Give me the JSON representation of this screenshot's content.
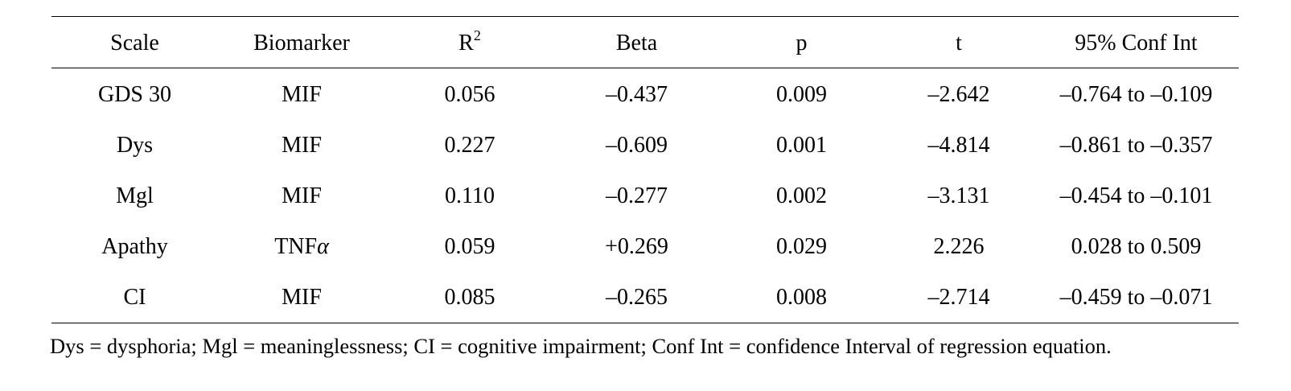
{
  "table": {
    "headers": {
      "scale": "Scale",
      "biomarker": "Biomarker",
      "r2_base": "R",
      "r2_sup": "2",
      "beta": "Beta",
      "p": "p",
      "t": "t",
      "ci": "95% Conf Int"
    },
    "rows": [
      {
        "scale": "GDS 30",
        "biomarker": "MIF",
        "biomarker_suffix": "",
        "r2": "0.056",
        "beta": "–0.437",
        "p": "0.009",
        "t": "–2.642",
        "ci": "–0.764 to –0.109"
      },
      {
        "scale": "Dys",
        "biomarker": "MIF",
        "biomarker_suffix": "",
        "r2": "0.227",
        "beta": "–0.609",
        "p": "0.001",
        "t": "–4.814",
        "ci": "–0.861 to –0.357"
      },
      {
        "scale": "Mgl",
        "biomarker": "MIF",
        "biomarker_suffix": "",
        "r2": "0.110",
        "beta": "–0.277",
        "p": "0.002",
        "t": "–3.131",
        "ci": "–0.454 to –0.101"
      },
      {
        "scale": "Apathy",
        "biomarker": "TNF",
        "biomarker_suffix": "α",
        "r2": "0.059",
        "beta": "+0.269",
        "p": "0.029",
        "t": "2.226",
        "ci": "0.028 to 0.509"
      },
      {
        "scale": "CI",
        "biomarker": "MIF",
        "biomarker_suffix": "",
        "r2": "0.085",
        "beta": "–0.265",
        "p": "0.008",
        "t": "–2.714",
        "ci": "–0.459 to –0.071"
      }
    ]
  },
  "footnote": "Dys = dysphoria; Mgl = meaninglessness; CI = cognitive impairment; Conf Int = confidence Interval of regression equation."
}
